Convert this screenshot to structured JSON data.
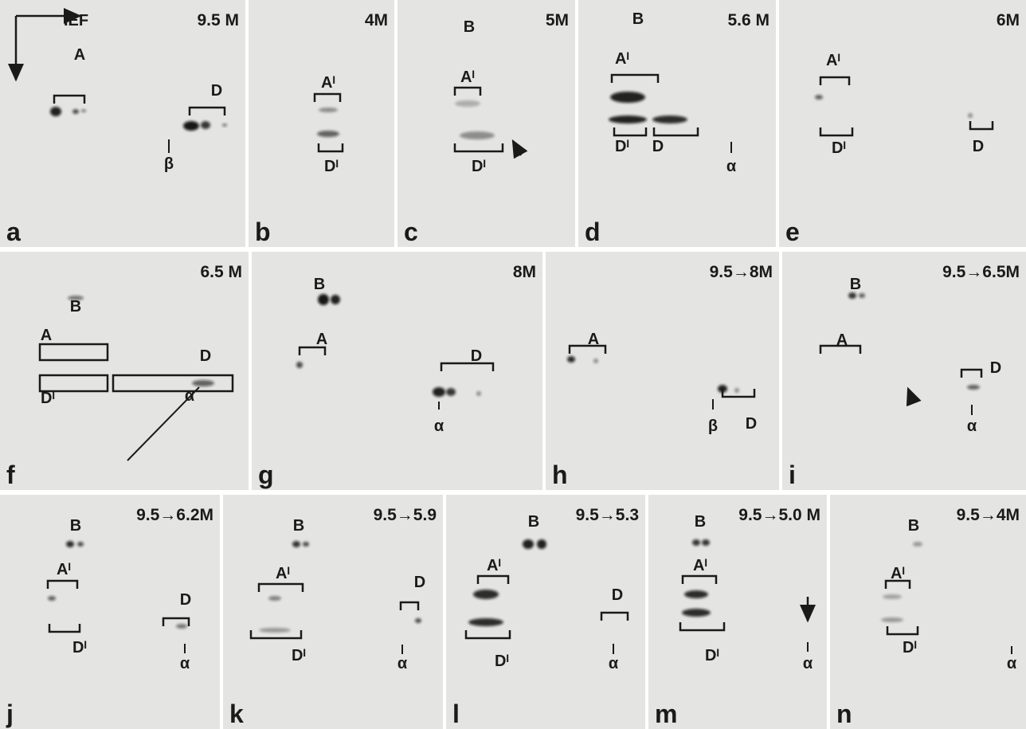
{
  "panels": [
    {
      "letter": "a",
      "condition": "9.5 M",
      "labels": [
        "IEF",
        "A",
        "D",
        "β"
      ]
    },
    {
      "letter": "b",
      "condition": "4M",
      "labels": [
        "Aᴵ",
        "Dᴵ"
      ]
    },
    {
      "letter": "c",
      "condition": "5M",
      "labels": [
        "B",
        "Aᴵ",
        "Dᴵ"
      ]
    },
    {
      "letter": "d",
      "condition": "5.6 M",
      "labels": [
        "B",
        "Aᴵ",
        "Dᴵ",
        "D",
        "α"
      ]
    },
    {
      "letter": "e",
      "condition": "6M",
      "labels": [
        "Aᴵ",
        "Dᴵ",
        "D"
      ]
    },
    {
      "letter": "f",
      "condition": "6.5 M",
      "labels": [
        "B",
        "A",
        "Dᴵ",
        "D",
        "α"
      ]
    },
    {
      "letter": "g",
      "condition": "8M",
      "labels": [
        "B",
        "A",
        "D",
        "α"
      ]
    },
    {
      "letter": "h",
      "condition": "9.5→8M",
      "labels": [
        "A",
        "β",
        "D"
      ]
    },
    {
      "letter": "i",
      "condition": "9.5→6.5M",
      "labels": [
        "B",
        "A",
        "D",
        "α"
      ]
    },
    {
      "letter": "j",
      "condition": "9.5→6.2M",
      "labels": [
        "B",
        "Aᴵ",
        "Dᴵ",
        "D",
        "α"
      ]
    },
    {
      "letter": "k",
      "condition": "9.5→5.9",
      "labels": [
        "B",
        "Aᴵ",
        "Dᴵ",
        "D",
        "α"
      ]
    },
    {
      "letter": "l",
      "condition": "9.5→5.3",
      "labels": [
        "B",
        "Aᴵ",
        "Dᴵ",
        "D",
        "α"
      ]
    },
    {
      "letter": "m",
      "condition": "9.5→5.0 M",
      "labels": [
        "B",
        "Aᴵ",
        "Dᴵ",
        "α"
      ]
    },
    {
      "letter": "n",
      "condition": "9.5→4M",
      "labels": [
        "B",
        "Aᴵ",
        "Dᴵ",
        "α"
      ]
    }
  ]
}
